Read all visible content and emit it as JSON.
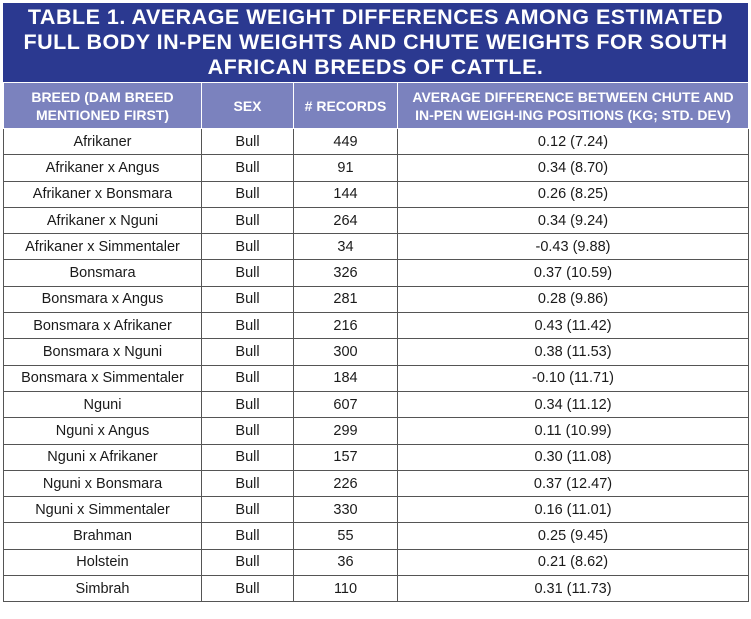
{
  "title": "TABLE 1. AVERAGE WEIGHT DIFFERENCES AMONG ESTIMATED FULL BODY IN-PEN WEIGHTS AND CHUTE WEIGHTS FOR SOUTH AFRICAN BREEDS OF CATTLE.",
  "colors": {
    "title_bg": "#2b3990",
    "header_bg": "#7b82be"
  },
  "columns": [
    "BREED (DAM BREED MENTIONED FIRST)",
    "SEX",
    "# RECORDS",
    "AVERAGE DIFFERENCE BETWEEN CHUTE AND IN-PEN WEIGH-ING POSITIONS (KG; STD. DEV)"
  ],
  "rows": [
    [
      "Afrikaner",
      "Bull",
      "449",
      "0.12 (7.24)"
    ],
    [
      "Afrikaner x Angus",
      "Bull",
      "91",
      "0.34 (8.70)"
    ],
    [
      "Afrikaner x Bonsmara",
      "Bull",
      "144",
      "0.26 (8.25)"
    ],
    [
      "Afrikaner x Nguni",
      "Bull",
      "264",
      "0.34 (9.24)"
    ],
    [
      "Afrikaner x Simmentaler",
      "Bull",
      "34",
      "-0.43 (9.88)"
    ],
    [
      "Bonsmara",
      "Bull",
      "326",
      "0.37 (10.59)"
    ],
    [
      "Bonsmara x Angus",
      "Bull",
      "281",
      "0.28 (9.86)"
    ],
    [
      "Bonsmara x Afrikaner",
      "Bull",
      "216",
      "0.43 (11.42)"
    ],
    [
      "Bonsmara x Nguni",
      "Bull",
      "300",
      "0.38 (11.53)"
    ],
    [
      "Bonsmara x Simmentaler",
      "Bull",
      "184",
      "-0.10 (11.71)"
    ],
    [
      "Nguni",
      "Bull",
      "607",
      "0.34 (11.12)"
    ],
    [
      "Nguni x Angus",
      "Bull",
      "299",
      "0.11 (10.99)"
    ],
    [
      "Nguni x Afrikaner",
      "Bull",
      "157",
      "0.30 (11.08)"
    ],
    [
      "Nguni x Bonsmara",
      "Bull",
      "226",
      "0.37 (12.47)"
    ],
    [
      "Nguni x Simmentaler",
      "Bull",
      "330",
      "0.16 (11.01)"
    ],
    [
      "Brahman",
      "Bull",
      "55",
      "0.25 (9.45)"
    ],
    [
      "Holstein",
      "Bull",
      "36",
      "0.21 (8.62)"
    ],
    [
      "Simbrah",
      "Bull",
      "110",
      "0.31 (11.73)"
    ]
  ]
}
